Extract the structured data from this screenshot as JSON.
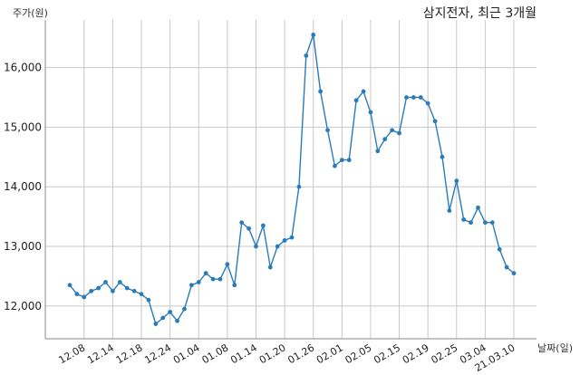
{
  "chart_data": {
    "type": "line",
    "title": "삼지전자, 최근 3개월",
    "ylabel": "주가(원)",
    "xlabel": "날짜(일)",
    "ylim": [
      11450,
      16800
    ],
    "yticks": [
      12000,
      13000,
      14000,
      15000,
      16000
    ],
    "ytick_labels": [
      "12,000",
      "13,000",
      "14,000",
      "15,000",
      "16,000"
    ],
    "xtick_labels": [
      "12.08",
      "12.14",
      "12.18",
      "12.24",
      "01.04",
      "01.08",
      "01.14",
      "01.20",
      "01.26",
      "02.01",
      "02.05",
      "02.15",
      "02.19",
      "02.25",
      "03.04",
      "21.03.10"
    ],
    "xtick_index": [
      2,
      6,
      10,
      14,
      18,
      22,
      26,
      30,
      34,
      38,
      42,
      46,
      50,
      54,
      58,
      62
    ],
    "grid": true,
    "line_color": "#2b7bb9",
    "values": [
      12350,
      12200,
      12150,
      12250,
      12300,
      12400,
      12250,
      12400,
      12300,
      12250,
      12200,
      12100,
      11700,
      11800,
      11900,
      11750,
      11950,
      12350,
      12400,
      12550,
      12450,
      12450,
      12700,
      12350,
      13400,
      13300,
      13000,
      13350,
      12650,
      13000,
      13100,
      13150,
      14000,
      16200,
      16550,
      15600,
      14950,
      14350,
      14450,
      14450,
      15450,
      15600,
      15250,
      14600,
      14800,
      14950,
      14900,
      15500,
      15500,
      15500,
      15400,
      15100,
      14500,
      13600,
      14100,
      13450,
      13400,
      13650,
      13400,
      13400,
      12950,
      12650,
      12550
    ]
  }
}
